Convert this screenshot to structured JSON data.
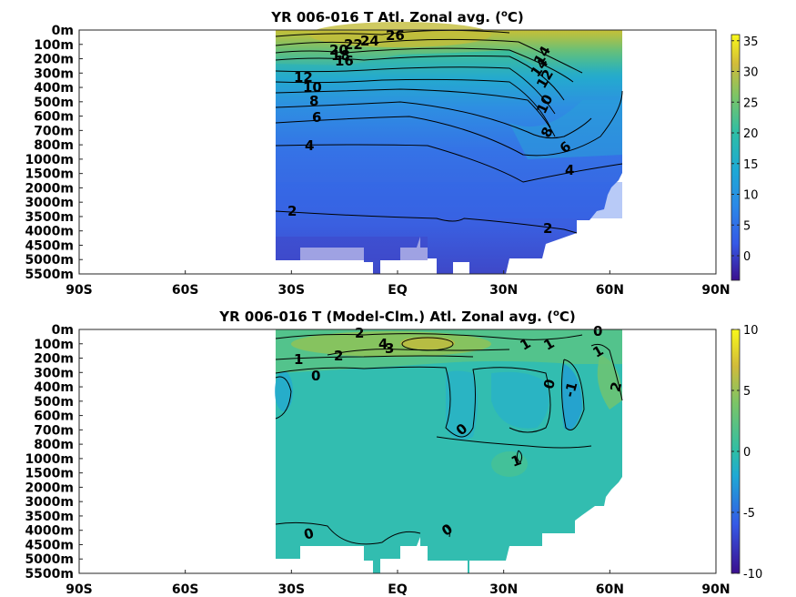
{
  "chart_data": [
    {
      "type": "heatmap",
      "title_main": "YR 006-016 T Atl. Zonal avg. (",
      "title_sup": "o",
      "title_end": "C)",
      "x_ticks": [
        "90S",
        "60S",
        "30S",
        "EQ",
        "30N",
        "60N",
        "90N"
      ],
      "y_ticks": [
        "0m",
        "100m",
        "200m",
        "300m",
        "400m",
        "500m",
        "600m",
        "700m",
        "800m",
        "1000m",
        "1500m",
        "2000m",
        "3000m",
        "3500m",
        "4000m",
        "4500m",
        "5000m",
        "5500m"
      ],
      "xlim": [
        -90,
        90
      ],
      "data_lat_range": [
        -35,
        63
      ],
      "colorbar": {
        "ticks": [
          35,
          30,
          25,
          20,
          15,
          10,
          5,
          0
        ],
        "min": -4,
        "max": 36
      },
      "contour_labels": [
        "26",
        "24",
        "22",
        "20",
        "18",
        "16",
        "14",
        "12",
        "10",
        "8",
        "6",
        "4",
        "2",
        "2",
        "14",
        "12",
        "10",
        "8",
        "6",
        "4"
      ],
      "colors": {
        "warm": "#c7c02e",
        "mid": "#37b89f",
        "cool": "#3a76e0",
        "deep": "#3f3fc8"
      }
    },
    {
      "type": "heatmap",
      "title_main": "YR 006-016 T (Model-Clm.) Atl. Zonal avg. (",
      "title_sup": "o",
      "title_end": "C)",
      "x_ticks": [
        "90S",
        "60S",
        "30S",
        "EQ",
        "30N",
        "60N",
        "90N"
      ],
      "y_ticks": [
        "0m",
        "100m",
        "200m",
        "300m",
        "400m",
        "500m",
        "600m",
        "700m",
        "800m",
        "1000m",
        "1500m",
        "2000m",
        "3000m",
        "3500m",
        "4000m",
        "4500m",
        "5000m",
        "5500m"
      ],
      "xlim": [
        -90,
        90
      ],
      "data_lat_range": [
        -35,
        63
      ],
      "colorbar": {
        "ticks": [
          10,
          5,
          0,
          -5,
          -10
        ],
        "min": -10,
        "max": 10
      },
      "contour_labels": [
        "2",
        "4",
        "3",
        "2",
        "1",
        "0",
        "1",
        "1",
        "0",
        "-1",
        "1",
        "2",
        "0",
        "1",
        "0",
        "0"
      ],
      "colors": {
        "background": "#2ebcb2",
        "positive": "#4fc27c",
        "negative": "#22a9d0"
      }
    }
  ]
}
